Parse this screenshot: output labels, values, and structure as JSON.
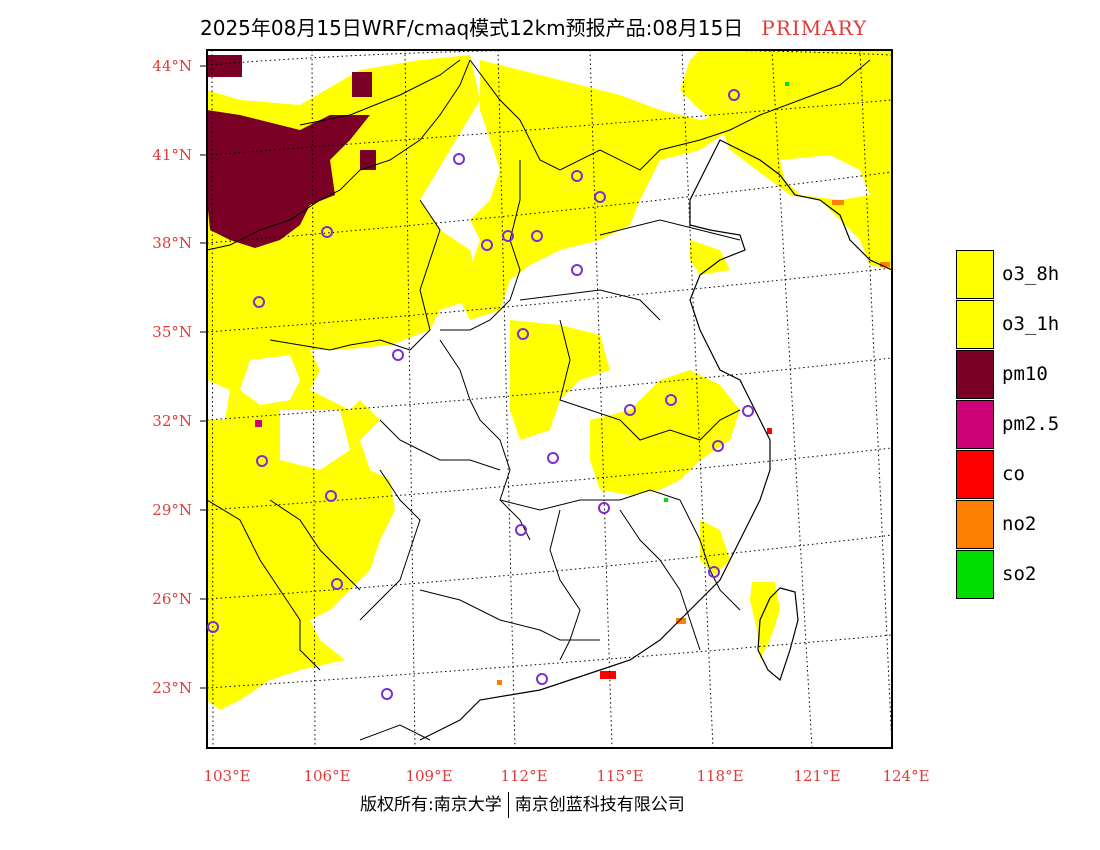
{
  "header": {
    "title": "2025年08月15日WRF/cmaq模式12km预报产品:08月15日",
    "tag": "PRIMARY"
  },
  "map": {
    "lat_labels": [
      "44°N",
      "41°N",
      "38°N",
      "35°N",
      "32°N",
      "29°N",
      "26°N",
      "23°N"
    ],
    "lon_labels": [
      "103°E",
      "106°E",
      "109°E",
      "112°E",
      "115°E",
      "118°E",
      "121°E",
      "124°E"
    ],
    "colors": {
      "o3_8h": "#ffff00",
      "o3_1h": "#ffff00",
      "pm10": "#7a0026",
      "pm2_5": "#cc0077",
      "co": "#ff0000",
      "no2": "#ff7f00",
      "so2": "#00dd00",
      "station": "#7b2fd0",
      "label": "#e03a3a"
    }
  },
  "legend": {
    "items": [
      {
        "label": "o3_8h",
        "color": "#ffff00"
      },
      {
        "label": "o3_1h",
        "color": "#ffff00"
      },
      {
        "label": "pm10",
        "color": "#7a0026"
      },
      {
        "label": "pm2.5",
        "color": "#cc0077"
      },
      {
        "label": "co",
        "color": "#ff0000"
      },
      {
        "label": "no2",
        "color": "#ff7f00"
      },
      {
        "label": "so2",
        "color": "#00dd00"
      }
    ]
  },
  "footer": {
    "left": "版权所有:南京大学",
    "right": "南京创蓝科技有限公司"
  }
}
